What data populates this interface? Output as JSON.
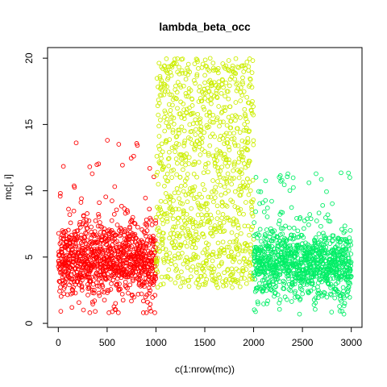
{
  "chart_data": {
    "type": "scatter",
    "title": "lambda_beta_occ",
    "xlabel": "c(1:nrow(mc))",
    "ylabel": "mc[, i]",
    "xlim": [
      -110,
      3110
    ],
    "ylim": [
      -0.3,
      20.8
    ],
    "xticks": [
      0,
      500,
      1000,
      1500,
      2000,
      2500,
      3000
    ],
    "yticks": [
      0,
      5,
      10,
      15,
      20
    ],
    "grid": false,
    "legend": "none",
    "series": [
      {
        "color": "#ff0000",
        "x_range": [
          1,
          1000
        ],
        "y_range": [
          0.8,
          14.3
        ],
        "y_typical": [
          1.5,
          8
        ],
        "count": 1000
      },
      {
        "color": "#ccee00",
        "x_range": [
          1001,
          2000
        ],
        "y_range": [
          2.7,
          20
        ],
        "y_typical": [
          4,
          20
        ],
        "count": 1000
      },
      {
        "color": "#00ee66",
        "x_range": [
          2001,
          3000
        ],
        "y_range": [
          0.7,
          11.4
        ],
        "y_typical": [
          1.5,
          7.5
        ],
        "count": 1000
      }
    ]
  }
}
